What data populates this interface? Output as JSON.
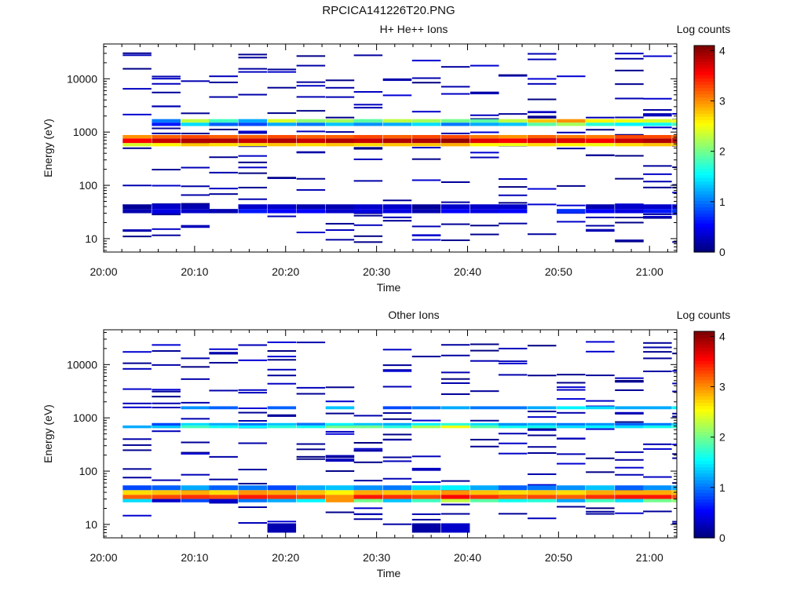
{
  "figure_title": "RPCICA141226T20.PNG",
  "chart_data": [
    {
      "type": "heatmap",
      "title": "H+ He++ Ions",
      "xlabel": "Time",
      "ylabel": "Energy (eV)",
      "colorbar_label": "Log counts",
      "colorbar_ticks": [
        "0",
        "1",
        "2",
        "3",
        "4"
      ],
      "colorbar_range": [
        0,
        4.1
      ],
      "x_ticks": [
        "20:00",
        "20:10",
        "20:20",
        "20:30",
        "20:40",
        "20:50",
        "21:00"
      ],
      "x_range_minutes": [
        0,
        63
      ],
      "y_ticks": [
        "10",
        "100",
        "1000",
        "10000"
      ],
      "y_scale": "log",
      "y_range": [
        5.6,
        45000
      ],
      "colormap": "jet",
      "bin_starts_minutes": [
        2.1,
        5.3,
        8.5,
        11.6,
        14.8,
        18.0,
        21.2,
        24.4,
        27.5,
        30.7,
        33.9,
        37.1,
        40.3,
        43.4,
        46.6,
        49.8,
        53.0,
        56.2,
        59.3,
        62.5
      ],
      "bands": [
        {
          "e_lo": 620,
          "e_hi": 760,
          "values": [
            3.6,
            3.8,
            3.9,
            3.9,
            3.8,
            3.9,
            3.8,
            3.9,
            3.8,
            3.9,
            3.9,
            4.0,
            3.7,
            3.6,
            3.7,
            3.7,
            3.6,
            3.8,
            3.9,
            3.8
          ]
        },
        {
          "e_lo": 760,
          "e_hi": 880,
          "values": [
            3.0,
            3.2,
            3.3,
            3.2,
            3.2,
            3.3,
            3.2,
            3.2,
            3.3,
            3.2,
            3.3,
            3.3,
            3.1,
            3.0,
            3.2,
            3.1,
            3.1,
            3.3,
            3.3,
            3.2
          ]
        },
        {
          "e_lo": 540,
          "e_hi": 620,
          "values": [
            2.4,
            2.6,
            2.8,
            2.7,
            2.7,
            2.8,
            2.7,
            2.8,
            2.7,
            2.8,
            2.8,
            2.9,
            2.6,
            2.5,
            2.7,
            2.6,
            2.5,
            2.7,
            2.8,
            2.8
          ]
        },
        {
          "e_lo": 1500,
          "e_hi": 1750,
          "values": [
            0.0,
            1.0,
            2.3,
            1.8,
            1.2,
            2.4,
            2.1,
            2.2,
            1.9,
            2.3,
            2.2,
            2.0,
            1.9,
            2.3,
            2.8,
            3.0,
            2.6,
            2.5,
            2.4,
            2.5
          ]
        },
        {
          "e_lo": 1300,
          "e_hi": 1500,
          "values": [
            0.0,
            0.6,
            1.4,
            0.9,
            0.8,
            1.2,
            1.0,
            1.3,
            1.1,
            1.2,
            1.4,
            1.0,
            1.2,
            1.3,
            1.9,
            2.2,
            1.7,
            1.5,
            1.6,
            1.8
          ]
        },
        {
          "e_lo": 30,
          "e_hi": 36,
          "values": [
            0.2,
            0.4,
            0.3,
            0.2,
            0.6,
            0.5,
            0.5,
            0.3,
            0.4,
            0.4,
            0.2,
            0.5,
            0.4,
            0.5,
            0.0,
            0.7,
            0.5,
            0.4,
            0.6,
            0.7
          ]
        },
        {
          "e_lo": 36,
          "e_hi": 44,
          "values": [
            0.1,
            0.3,
            0.2,
            0.0,
            0.3,
            0.3,
            0.2,
            0.2,
            0.3,
            0.3,
            0.1,
            0.3,
            0.3,
            0.3,
            0.0,
            0.0,
            0.2,
            0.3,
            0.3,
            0.4
          ]
        }
      ]
    },
    {
      "type": "heatmap",
      "title": "Other Ions",
      "xlabel": "Time",
      "ylabel": "Energy (eV)",
      "colorbar_label": "Log counts",
      "colorbar_ticks": [
        "0",
        "1",
        "2",
        "3",
        "4"
      ],
      "colorbar_range": [
        0,
        4.1
      ],
      "x_ticks": [
        "20:00",
        "20:10",
        "20:20",
        "20:30",
        "20:40",
        "20:50",
        "21:00"
      ],
      "x_range_minutes": [
        0,
        63
      ],
      "y_ticks": [
        "10",
        "100",
        "1000",
        "10000"
      ],
      "y_scale": "log",
      "y_range": [
        5.6,
        45000
      ],
      "colormap": "jet",
      "bin_starts_minutes": [
        2.1,
        5.3,
        8.5,
        11.6,
        14.8,
        18.0,
        21.2,
        24.4,
        27.5,
        30.7,
        33.9,
        37.1,
        40.3,
        43.4,
        46.6,
        49.8,
        53.0,
        56.2,
        59.3,
        62.5
      ],
      "bands": [
        {
          "e_lo": 30,
          "e_hi": 36,
          "values": [
            3.2,
            3.3,
            3.4,
            3.3,
            3.5,
            3.4,
            3.3,
            3.0,
            3.5,
            3.4,
            3.3,
            3.6,
            3.4,
            3.2,
            3.3,
            3.2,
            3.4,
            3.5,
            3.5,
            3.3
          ]
        },
        {
          "e_lo": 36,
          "e_hi": 44,
          "values": [
            2.7,
            2.8,
            2.9,
            2.7,
            3.0,
            2.9,
            2.8,
            2.6,
            2.9,
            2.8,
            2.8,
            3.0,
            2.8,
            2.7,
            2.8,
            2.7,
            2.9,
            2.9,
            2.9,
            2.8
          ]
        },
        {
          "e_lo": 26,
          "e_hi": 30,
          "values": [
            1.4,
            0.3,
            0.8,
            0.3,
            1.0,
            1.2,
            1.5,
            3.0,
            2.0,
            1.3,
            1.8,
            2.3,
            1.9,
            1.6,
            1.7,
            1.2,
            1.8,
            1.4,
            2.0,
            2.1
          ]
        },
        {
          "e_lo": 44,
          "e_hi": 54,
          "values": [
            0.8,
            0.9,
            1.2,
            0.9,
            1.0,
            0.8,
            1.2,
            1.3,
            1.1,
            1.0,
            1.4,
            1.5,
            1.2,
            0.9,
            1.0,
            1.1,
            1.3,
            0.9,
            1.1,
            1.2
          ]
        },
        {
          "e_lo": 640,
          "e_hi": 720,
          "values": [
            1.2,
            1.3,
            1.8,
            1.6,
            1.5,
            1.7,
            1.6,
            2.0,
            2.0,
            1.7,
            2.2,
            2.5,
            1.9,
            1.6,
            1.6,
            1.4,
            1.5,
            1.4,
            1.6,
            1.7
          ]
        },
        {
          "e_lo": 720,
          "e_hi": 800,
          "values": [
            0.0,
            0.8,
            1.4,
            1.2,
            1.0,
            1.3,
            1.0,
            1.5,
            1.3,
            1.2,
            1.5,
            1.7,
            1.4,
            1.1,
            1.2,
            1.0,
            1.1,
            0.9,
            1.0,
            1.3
          ]
        },
        {
          "e_lo": 1450,
          "e_hi": 1650,
          "values": [
            0.0,
            0.0,
            1.1,
            0.9,
            0.0,
            0.9,
            0.0,
            1.3,
            0.0,
            0.8,
            1.0,
            1.2,
            1.0,
            1.0,
            1.2,
            1.5,
            1.4,
            1.2,
            1.2,
            1.5
          ]
        },
        {
          "e_lo": 7,
          "e_hi": 10.5,
          "values": [
            0.0,
            0.0,
            0.0,
            0.0,
            0.0,
            0.2,
            0.0,
            0.0,
            0.0,
            0.0,
            0.15,
            0.3,
            0.0,
            0.0,
            0.0,
            0.0,
            0.0,
            0.0,
            0.0,
            0.0
          ]
        }
      ]
    }
  ]
}
